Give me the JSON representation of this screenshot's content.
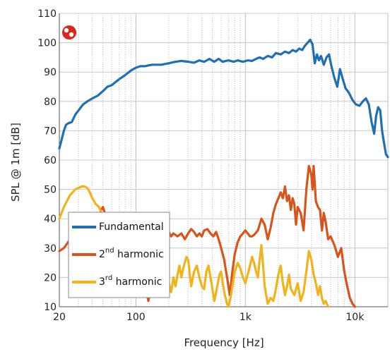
{
  "chart_data": {
    "type": "line",
    "xlabel": "Frequency [Hz]",
    "ylabel": "SPL @ 1m [dB]",
    "xscale": "log",
    "xlim": [
      20,
      20000
    ],
    "ylim": [
      10,
      110
    ],
    "x_ticks": [
      {
        "value": 20,
        "label": "20"
      },
      {
        "value": 100,
        "label": "100"
      },
      {
        "value": 1000,
        "label": "1k"
      },
      {
        "value": 10000,
        "label": "10k"
      }
    ],
    "y_ticks": [
      10,
      20,
      30,
      40,
      50,
      60,
      70,
      80,
      90,
      100,
      110
    ],
    "grid": true,
    "legend_position": "lower-left",
    "legend": [
      {
        "text": "Fundamental",
        "sup": "",
        "suffix": ""
      },
      {
        "text": "2",
        "sup": "nd",
        "suffix": " harmonic"
      },
      {
        "text": "3",
        "sup": "rd",
        "suffix": " harmonic"
      }
    ],
    "series": [
      {
        "color": "#1f6fb4",
        "points": [
          [
            20,
            64
          ],
          [
            21,
            67
          ],
          [
            22,
            70
          ],
          [
            23,
            72
          ],
          [
            24,
            72.5
          ],
          [
            26,
            73
          ],
          [
            28,
            75.5
          ],
          [
            30,
            77
          ],
          [
            33,
            79
          ],
          [
            36,
            80
          ],
          [
            40,
            81
          ],
          [
            45,
            82
          ],
          [
            50,
            83.5
          ],
          [
            55,
            85
          ],
          [
            60,
            85.5
          ],
          [
            70,
            87.5
          ],
          [
            80,
            89
          ],
          [
            90,
            90.5
          ],
          [
            100,
            91.5
          ],
          [
            110,
            92
          ],
          [
            120,
            92
          ],
          [
            140,
            92.5
          ],
          [
            170,
            92.5
          ],
          [
            200,
            93
          ],
          [
            230,
            93.5
          ],
          [
            260,
            93.8
          ],
          [
            300,
            93.5
          ],
          [
            340,
            93.2
          ],
          [
            380,
            94
          ],
          [
            420,
            93.5
          ],
          [
            470,
            94.5
          ],
          [
            520,
            93.5
          ],
          [
            570,
            94.5
          ],
          [
            620,
            93.5
          ],
          [
            700,
            94
          ],
          [
            780,
            93.5
          ],
          [
            850,
            94
          ],
          [
            950,
            93.5
          ],
          [
            1050,
            94
          ],
          [
            1150,
            93.8
          ],
          [
            1250,
            94.5
          ],
          [
            1350,
            95
          ],
          [
            1450,
            94.5
          ],
          [
            1600,
            95.5
          ],
          [
            1750,
            95
          ],
          [
            1900,
            96.5
          ],
          [
            2100,
            96
          ],
          [
            2300,
            97
          ],
          [
            2500,
            96.5
          ],
          [
            2700,
            97.5
          ],
          [
            2900,
            97
          ],
          [
            3100,
            98
          ],
          [
            3300,
            97.5
          ],
          [
            3500,
            99
          ],
          [
            3700,
            100
          ],
          [
            3900,
            101
          ],
          [
            4100,
            99.5
          ],
          [
            4300,
            93
          ],
          [
            4500,
            96
          ],
          [
            4700,
            94
          ],
          [
            4900,
            95.5
          ],
          [
            5200,
            92.5
          ],
          [
            5500,
            95
          ],
          [
            5800,
            96
          ],
          [
            6100,
            92
          ],
          [
            6500,
            88
          ],
          [
            6900,
            85
          ],
          [
            7300,
            91
          ],
          [
            7700,
            88
          ],
          [
            8200,
            84.5
          ],
          [
            8800,
            83
          ],
          [
            9500,
            80.5
          ],
          [
            10200,
            79
          ],
          [
            11000,
            78.5
          ],
          [
            11800,
            80
          ],
          [
            12600,
            81
          ],
          [
            13400,
            79
          ],
          [
            14200,
            73
          ],
          [
            15000,
            69
          ],
          [
            15600,
            75
          ],
          [
            16300,
            78
          ],
          [
            17000,
            77
          ],
          [
            17700,
            70
          ],
          [
            18400,
            66
          ],
          [
            19200,
            62
          ],
          [
            20000,
            61
          ]
        ]
      },
      {
        "color": "#d9541a",
        "points": [
          [
            20,
            29
          ],
          [
            22,
            30
          ],
          [
            24,
            32
          ],
          [
            26,
            34
          ],
          [
            28,
            37
          ],
          [
            30,
            40
          ],
          [
            32,
            42
          ],
          [
            34,
            41
          ],
          [
            36,
            40
          ],
          [
            38,
            42
          ],
          [
            40,
            40
          ],
          [
            42,
            41
          ],
          [
            44,
            42
          ],
          [
            46,
            40
          ],
          [
            48,
            43
          ],
          [
            50,
            44
          ],
          [
            52,
            42
          ],
          [
            54,
            40
          ],
          [
            56,
            41
          ],
          [
            58,
            38
          ],
          [
            60,
            39
          ],
          [
            63,
            37
          ],
          [
            66,
            38
          ],
          [
            70,
            35
          ],
          [
            75,
            33
          ],
          [
            80,
            31
          ],
          [
            85,
            30
          ],
          [
            90,
            28
          ],
          [
            95,
            26
          ],
          [
            100,
            24
          ],
          [
            105,
            22
          ],
          [
            110,
            21
          ],
          [
            115,
            19
          ],
          [
            120,
            17
          ],
          [
            125,
            15
          ],
          [
            130,
            12
          ],
          [
            135,
            15
          ],
          [
            140,
            20
          ],
          [
            150,
            26
          ],
          [
            160,
            33
          ],
          [
            170,
            36
          ],
          [
            180,
            35
          ],
          [
            190,
            34
          ],
          [
            200,
            35.5
          ],
          [
            210,
            34
          ],
          [
            220,
            35
          ],
          [
            240,
            34
          ],
          [
            260,
            35
          ],
          [
            280,
            33
          ],
          [
            300,
            35
          ],
          [
            320,
            36.5
          ],
          [
            340,
            35.5
          ],
          [
            360,
            34
          ],
          [
            380,
            35
          ],
          [
            400,
            34
          ],
          [
            420,
            36
          ],
          [
            450,
            36.5
          ],
          [
            480,
            35
          ],
          [
            510,
            34
          ],
          [
            540,
            35.5
          ],
          [
            570,
            33
          ],
          [
            600,
            30
          ],
          [
            640,
            26
          ],
          [
            680,
            20
          ],
          [
            720,
            14
          ],
          [
            760,
            22
          ],
          [
            800,
            28
          ],
          [
            850,
            32
          ],
          [
            900,
            34
          ],
          [
            950,
            35
          ],
          [
            1000,
            36
          ],
          [
            1050,
            35
          ],
          [
            1100,
            34
          ],
          [
            1150,
            34
          ],
          [
            1200,
            34.5
          ],
          [
            1300,
            36
          ],
          [
            1400,
            40
          ],
          [
            1500,
            38
          ],
          [
            1600,
            33
          ],
          [
            1700,
            37
          ],
          [
            1800,
            42
          ],
          [
            1900,
            45
          ],
          [
            2000,
            47
          ],
          [
            2100,
            49
          ],
          [
            2200,
            47
          ],
          [
            2300,
            51
          ],
          [
            2400,
            46
          ],
          [
            2500,
            48
          ],
          [
            2600,
            43
          ],
          [
            2700,
            47
          ],
          [
            2800,
            45
          ],
          [
            2900,
            38
          ],
          [
            3000,
            44
          ],
          [
            3200,
            42
          ],
          [
            3400,
            36
          ],
          [
            3600,
            50
          ],
          [
            3800,
            58
          ],
          [
            4000,
            55
          ],
          [
            4100,
            50
          ],
          [
            4200,
            58
          ],
          [
            4300,
            52
          ],
          [
            4400,
            46
          ],
          [
            4600,
            44
          ],
          [
            4800,
            43
          ],
          [
            5000,
            36
          ],
          [
            5200,
            42
          ],
          [
            5400,
            39
          ],
          [
            5700,
            33
          ],
          [
            6000,
            34
          ],
          [
            6500,
            31
          ],
          [
            7000,
            27
          ],
          [
            7500,
            30
          ],
          [
            8000,
            22
          ],
          [
            8500,
            17
          ],
          [
            9000,
            13
          ],
          [
            9500,
            11
          ],
          [
            10000,
            10
          ]
        ]
      },
      {
        "color": "#f0b31c",
        "points": [
          [
            20,
            40
          ],
          [
            22,
            44
          ],
          [
            25,
            48
          ],
          [
            28,
            50
          ],
          [
            30,
            50.5
          ],
          [
            32,
            51
          ],
          [
            34,
            51
          ],
          [
            36,
            50.5
          ],
          [
            38,
            49
          ],
          [
            40,
            47
          ],
          [
            43,
            45
          ],
          [
            46,
            44
          ],
          [
            50,
            41
          ],
          [
            55,
            39
          ],
          [
            60,
            40
          ],
          [
            65,
            38
          ],
          [
            70,
            36
          ],
          [
            75,
            35
          ],
          [
            80,
            33
          ],
          [
            85,
            31
          ],
          [
            90,
            29
          ],
          [
            95,
            26
          ],
          [
            100,
            25.5
          ],
          [
            110,
            24
          ],
          [
            120,
            25.5
          ],
          [
            130,
            24
          ],
          [
            140,
            20
          ],
          [
            150,
            23
          ],
          [
            160,
            22
          ],
          [
            170,
            24
          ],
          [
            180,
            23
          ],
          [
            190,
            21
          ],
          [
            200,
            18
          ],
          [
            210,
            15
          ],
          [
            220,
            20
          ],
          [
            230,
            17
          ],
          [
            240,
            21
          ],
          [
            250,
            24
          ],
          [
            260,
            20
          ],
          [
            270,
            23
          ],
          [
            280,
            25
          ],
          [
            290,
            27
          ],
          [
            300,
            26
          ],
          [
            320,
            17
          ],
          [
            340,
            22
          ],
          [
            360,
            24
          ],
          [
            380,
            20
          ],
          [
            400,
            17
          ],
          [
            420,
            16
          ],
          [
            440,
            22
          ],
          [
            460,
            24
          ],
          [
            480,
            20
          ],
          [
            500,
            16
          ],
          [
            520,
            12
          ],
          [
            540,
            15
          ],
          [
            560,
            18
          ],
          [
            580,
            21
          ],
          [
            600,
            22
          ],
          [
            620,
            18
          ],
          [
            650,
            14
          ],
          [
            680,
            11
          ],
          [
            700,
            10
          ],
          [
            730,
            13
          ],
          [
            760,
            17
          ],
          [
            800,
            22
          ],
          [
            850,
            25
          ],
          [
            900,
            23
          ],
          [
            950,
            20
          ],
          [
            1000,
            18
          ],
          [
            1050,
            21
          ],
          [
            1100,
            24
          ],
          [
            1150,
            27
          ],
          [
            1200,
            25
          ],
          [
            1250,
            22
          ],
          [
            1300,
            20
          ],
          [
            1350,
            26
          ],
          [
            1400,
            31
          ],
          [
            1450,
            24
          ],
          [
            1500,
            17
          ],
          [
            1550,
            14
          ],
          [
            1600,
            11
          ],
          [
            1700,
            13
          ],
          [
            1800,
            12
          ],
          [
            1900,
            16
          ],
          [
            2000,
            21
          ],
          [
            2100,
            24
          ],
          [
            2200,
            18
          ],
          [
            2300,
            14
          ],
          [
            2400,
            17
          ],
          [
            2500,
            21
          ],
          [
            2600,
            16
          ],
          [
            2800,
            14
          ],
          [
            3000,
            18
          ],
          [
            3200,
            12
          ],
          [
            3400,
            15
          ],
          [
            3600,
            22
          ],
          [
            3800,
            29
          ],
          [
            4000,
            26
          ],
          [
            4200,
            21
          ],
          [
            4400,
            18
          ],
          [
            4600,
            14
          ],
          [
            4800,
            17
          ],
          [
            5000,
            13
          ],
          [
            5200,
            11
          ],
          [
            5400,
            12
          ],
          [
            5700,
            10
          ]
        ]
      }
    ]
  }
}
